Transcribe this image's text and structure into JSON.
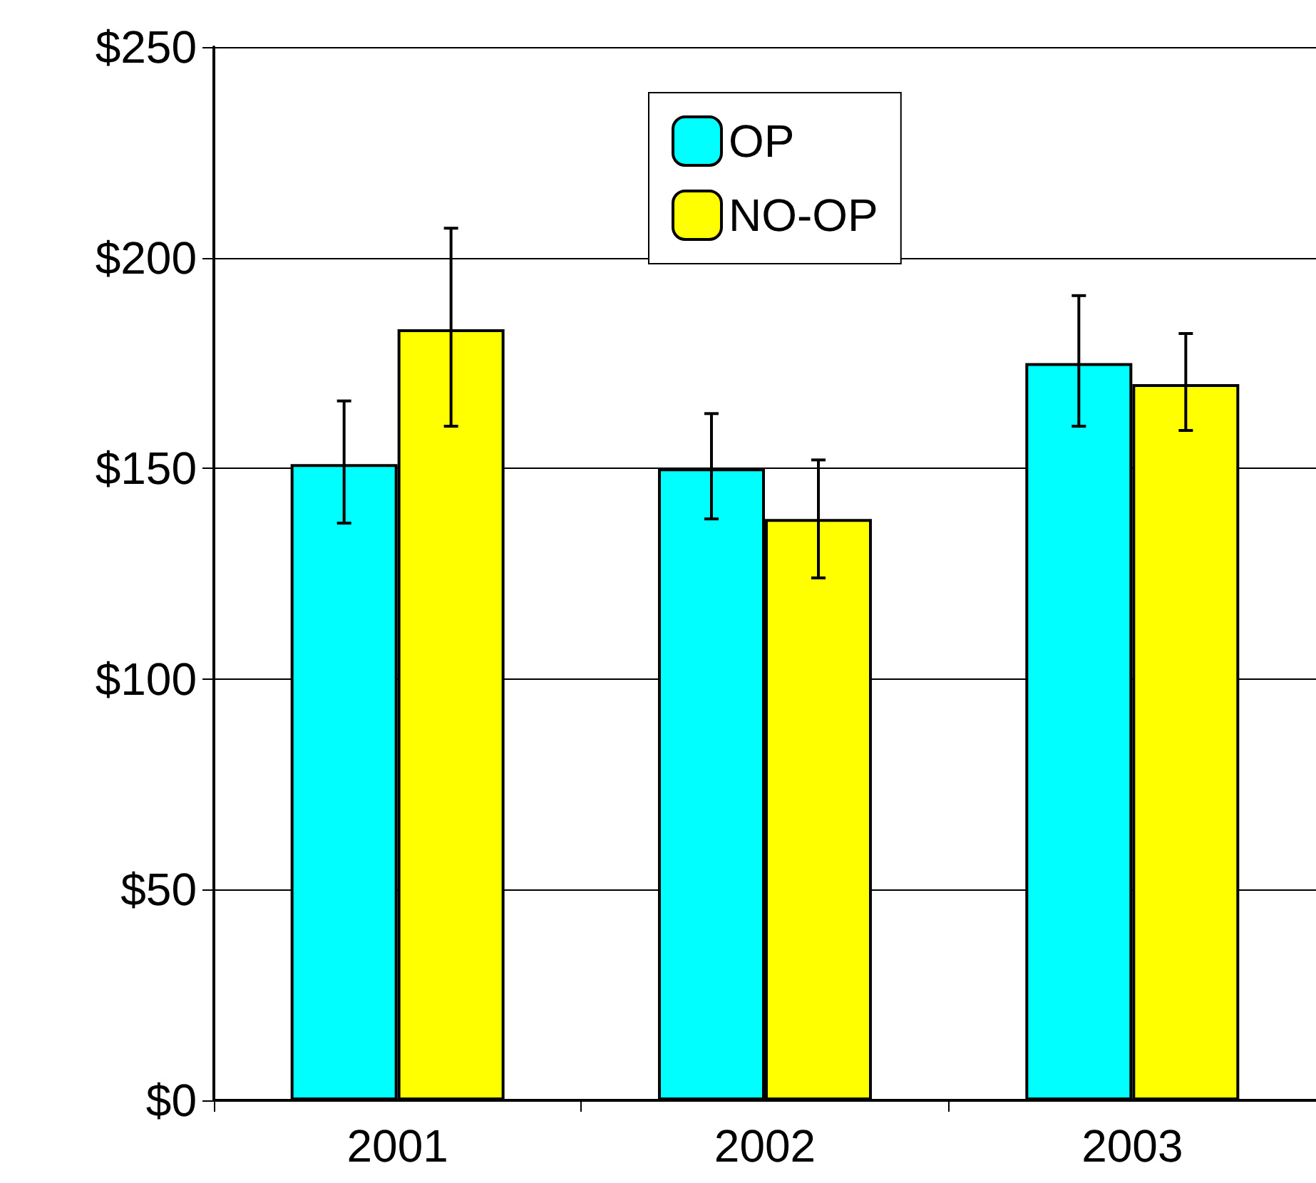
{
  "chart_data": {
    "type": "bar",
    "categories": [
      "2001",
      "2002",
      "2003"
    ],
    "series": [
      {
        "name": "OP",
        "color": "#00ffff",
        "values": [
          151,
          150,
          175
        ],
        "errors": [
          [
            137,
            166
          ],
          [
            138,
            163
          ],
          [
            160,
            191
          ]
        ]
      },
      {
        "name": "NO-OP",
        "color": "#ffff00",
        "values": [
          183,
          138,
          170
        ],
        "errors": [
          [
            160,
            207
          ],
          [
            124,
            152
          ],
          [
            159,
            182
          ]
        ]
      }
    ],
    "ylim": [
      0,
      250
    ],
    "yticks": [
      {
        "value": 0,
        "label": "$0"
      },
      {
        "value": 50,
        "label": "$50"
      },
      {
        "value": 100,
        "label": "$100"
      },
      {
        "value": 150,
        "label": "$150"
      },
      {
        "value": 200,
        "label": "$200"
      },
      {
        "value": 250,
        "label": "$250"
      }
    ],
    "grid": "y",
    "legend": "top"
  }
}
